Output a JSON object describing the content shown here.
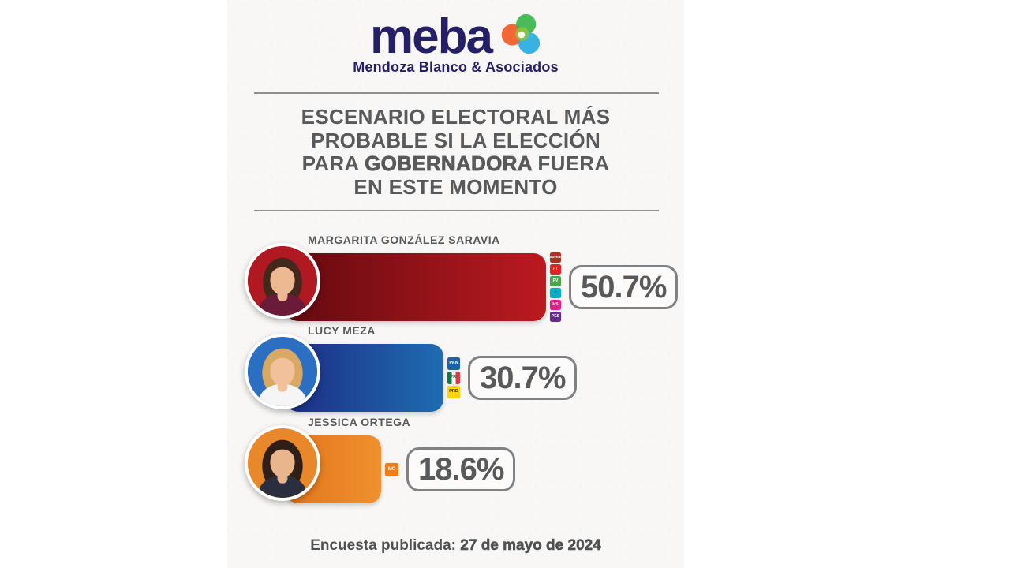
{
  "logo": {
    "wordmark": "meba",
    "subtitle": "Mendoza Blanco & Asociados",
    "brand_color": "#241f66",
    "icon": "meba-swirl-icon",
    "icon_colors": [
      "#f15a24",
      "#39b54a",
      "#8dc63f",
      "#27aae1"
    ]
  },
  "title": {
    "line1": "ESCENARIO ELECTORAL MÁS",
    "line2": "PROBABLE SI LA ELECCIÓN",
    "line3_pre": "PARA ",
    "line3_strong": "GOBERNADORA",
    "line3_post": " FUERA",
    "line4": "EN ESTE MOMENTO"
  },
  "colors": {
    "panel_bg": "#f8f7f5",
    "text_dark": "#58595b",
    "divider": "#8f8f8f",
    "badge_border": "#808184"
  },
  "candidates": [
    {
      "name": "MARGARITA GONZÁLEZ SARAVIA",
      "pct_label": "50.7%",
      "value": 50.7,
      "bar_gradient": [
        "#640a10",
        "#bb1a20"
      ],
      "avatar": {
        "bg": "#b01822",
        "hair": "#43291c",
        "top": "#6b1b3a",
        "skin": "#edb992"
      },
      "photo": "margarita-gonzalez-saravia-photo",
      "parties": [
        {
          "icon": "morena-party-icon",
          "abbr": "morena",
          "color": "#a93226",
          "text": "#ffffff"
        },
        {
          "icon": "pt-party-icon",
          "abbr": "PT",
          "color": "#e62129",
          "text": "#ffd400"
        },
        {
          "icon": "pvem-party-icon",
          "abbr": "PV",
          "color": "#4ba54f",
          "text": "#ffffff"
        },
        {
          "icon": "nueva-alianza-party-icon",
          "abbr": "✓",
          "color": "#00b0c7",
          "text": "#1b2a6b"
        },
        {
          "icon": "mas-party-icon",
          "abbr": "MS",
          "color": "#e0218a",
          "text": "#ffffff"
        },
        {
          "icon": "pes-party-icon",
          "abbr": "PES",
          "color": "#652d89",
          "text": "#ffffff"
        }
      ]
    },
    {
      "name": "LUCY MEZA",
      "pct_label": "30.7%",
      "value": 30.7,
      "bar_gradient": [
        "#1d2d84",
        "#1e6cb2"
      ],
      "avatar": {
        "bg": "#2a6fc2",
        "hair": "#d9a964",
        "top": "#f5f5f5",
        "skin": "#f0c19a"
      },
      "photo": "lucy-meza-photo",
      "parties": [
        {
          "icon": "pan-party-icon",
          "abbr": "PAN",
          "color": "#1b63a5",
          "text": "#ffffff"
        },
        {
          "icon": "pri-party-icon",
          "abbr": "PRI",
          "color": "linear-gradient(90deg,#0b7a40 33%,#ffffff 33%,#ffffff 67%,#e03a3c 67%)",
          "text": "#58595b"
        },
        {
          "icon": "prd-party-icon",
          "abbr": "PRD",
          "color": "#fed500",
          "text": "#231f20"
        }
      ]
    },
    {
      "name": "JESSICA ORTEGA",
      "pct_label": "18.6%",
      "value": 18.6,
      "bar_gradient": [
        "#e2761d",
        "#f0902e"
      ],
      "avatar": {
        "bg": "#e9882b",
        "hair": "#2f1f16",
        "top": "#2a2e3f",
        "skin": "#e8b58d"
      },
      "photo": "jessica-ortega-photo",
      "parties": [
        {
          "icon": "mc-party-icon",
          "abbr": "MC",
          "color": "#f07e16",
          "text": "#ffffff"
        }
      ]
    }
  ],
  "footer": {
    "label": "Encuesta publicada:",
    "date": "27 de mayo de 2024"
  },
  "chart_data": {
    "type": "bar",
    "orientation": "horizontal",
    "title": "ESCENARIO ELECTORAL MÁS PROBABLE SI LA ELECCIÓN PARA GOBERNADORA FUERA EN ESTE MOMENTO",
    "categories": [
      "MARGARITA GONZÁLEZ SARAVIA",
      "LUCY MEZA",
      "JESSICA ORTEGA"
    ],
    "values": [
      50.7,
      30.7,
      18.6
    ],
    "value_labels": [
      "50.7%",
      "30.7%",
      "18.6%"
    ],
    "bar_colors": [
      "#a3141b",
      "#1e4fa0",
      "#ec8423"
    ],
    "coalitions": [
      [
        "morena",
        "PT",
        "PVEM",
        "Nueva Alianza",
        "MAS",
        "PES"
      ],
      [
        "PAN",
        "PRI",
        "PRD"
      ],
      [
        "MC"
      ]
    ],
    "xlim": [
      0,
      55
    ],
    "grid": false,
    "legend": "none",
    "annotations": [
      "Encuesta publicada: 27 de mayo de 2024"
    ]
  }
}
